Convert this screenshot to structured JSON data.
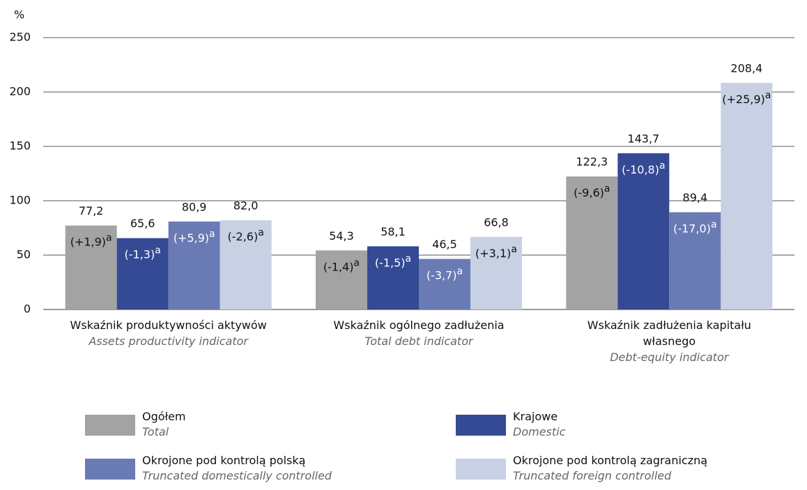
{
  "chart_data": {
    "type": "bar",
    "y_unit": "%",
    "categories": [
      "Wskaźnik produktywności aktywów",
      "Wskaźnik ogólnego zadłużenia",
      "Wskaźnik zadłużenia kapitału własnego"
    ],
    "categories_en": [
      "Assets productivity indicator",
      "Total debt indicator",
      "Debt-equity indicator"
    ],
    "ylim": [
      0,
      250
    ],
    "yticks": [
      0,
      50,
      100,
      150,
      200,
      250
    ],
    "grid": true,
    "change_note": "a",
    "series": [
      {
        "name": "Ogółem",
        "name_en": "Total",
        "color": "#a3a3a3",
        "label_color": "#111111",
        "values": [
          77.2,
          54.3,
          122.3
        ],
        "value_labels": [
          "77,2",
          "54,3",
          "122,3"
        ],
        "changes": [
          1.9,
          -1.4,
          -9.6
        ],
        "change_labels": [
          "(+1,9)",
          "(-1,4)",
          "(-9,6)"
        ]
      },
      {
        "name": "Krajowe",
        "name_en": "Domestic",
        "color": "#344a94",
        "label_color": "#ffffff",
        "values": [
          65.6,
          58.1,
          143.7
        ],
        "value_labels": [
          "65,6",
          "58,1",
          "143,7"
        ],
        "changes": [
          -1.3,
          -1.5,
          -10.8
        ],
        "change_labels": [
          "(-1,3)",
          "(-1,5)",
          "(-10,8)"
        ]
      },
      {
        "name": "Okrojone pod kontrolą polską",
        "name_en": "Truncated domestically controlled",
        "color": "#6a7ab5",
        "label_color": "#ffffff",
        "values": [
          80.9,
          46.5,
          89.4
        ],
        "value_labels": [
          "80,9",
          "46,5",
          "89,4"
        ],
        "changes": [
          5.9,
          -3.7,
          -17.0
        ],
        "change_labels": [
          "(+5,9)",
          "(-3,7)",
          "(-17,0)"
        ]
      },
      {
        "name": "Okrojone pod kontrolą zagraniczną",
        "name_en": "Truncated foreign controlled",
        "color": "#c8d0e4",
        "label_color": "#111111",
        "values": [
          82.0,
          66.8,
          208.4
        ],
        "value_labels": [
          "82,0",
          "66,8",
          "208,4"
        ],
        "changes": [
          -2.6,
          3.1,
          25.9
        ],
        "change_labels": [
          "(-2,6)",
          "(+3,1)",
          "(+25,9)"
        ]
      }
    ]
  }
}
